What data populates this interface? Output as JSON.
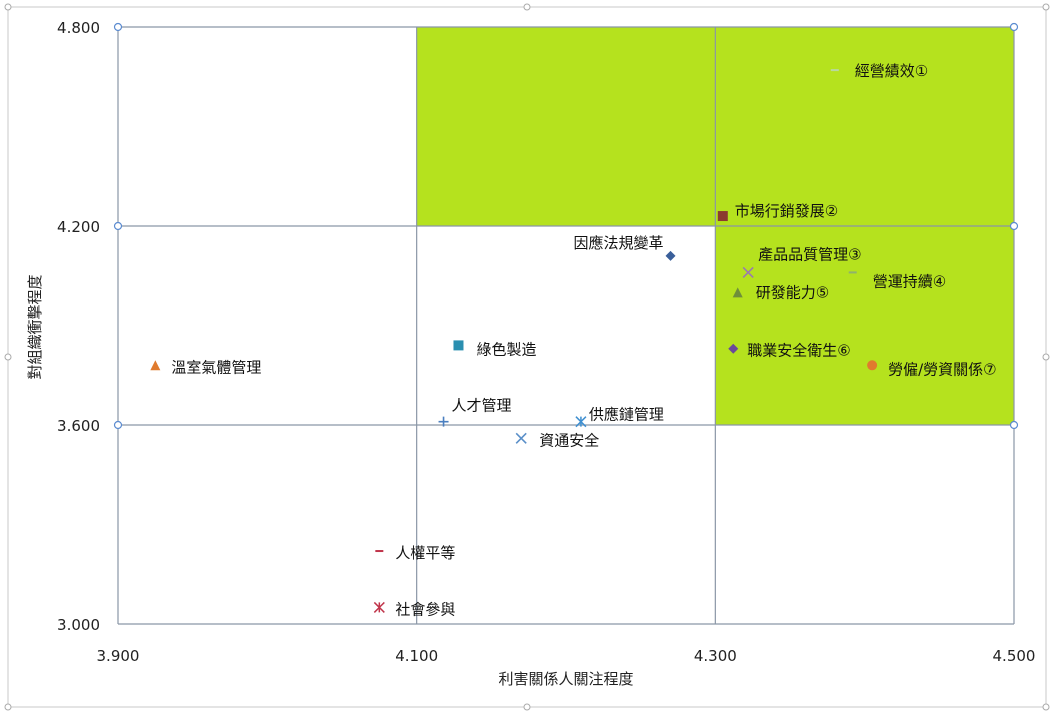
{
  "chart_data": {
    "type": "scatter",
    "title": "",
    "xlabel": "利害關係人關注程度",
    "ylabel": "對組織衝擊程度",
    "xlim": [
      3.9,
      4.5
    ],
    "ylim": [
      3.0,
      4.8
    ],
    "x_ticks": [
      "3.900",
      "4.100",
      "4.300",
      "4.500"
    ],
    "y_ticks": [
      "3.000",
      "3.600",
      "4.200",
      "4.800"
    ],
    "grid": true,
    "legend": "none",
    "highlight_regions": [
      {
        "x": [
          4.1,
          4.3
        ],
        "y": [
          4.2,
          4.8
        ],
        "color": "#b5e21e"
      },
      {
        "x": [
          4.3,
          4.5
        ],
        "y": [
          3.6,
          4.8
        ],
        "color": "#b5e21e"
      }
    ],
    "points": [
      {
        "label": "經營績效①",
        "x": 4.38,
        "y": 4.67,
        "marker": "dash",
        "color": "#b9d9a0"
      },
      {
        "label": "市場行銷發展②",
        "x": 4.305,
        "y": 4.23,
        "marker": "square",
        "color": "#8b3a2f"
      },
      {
        "label": "因應法規變革",
        "x": 4.27,
        "y": 4.11,
        "marker": "diamond",
        "color": "#3a5f9a"
      },
      {
        "label": "產品品質管理③",
        "x": 4.322,
        "y": 4.06,
        "marker": "x",
        "color": "#9a7ab0"
      },
      {
        "label": "營運持續④",
        "x": 4.392,
        "y": 4.06,
        "marker": "dash",
        "color": "#8fb26e"
      },
      {
        "label": "研發能力⑤",
        "x": 4.315,
        "y": 4.0,
        "marker": "triangle",
        "color": "#6f8f3a"
      },
      {
        "label": "職業安全衛生⑥",
        "x": 4.312,
        "y": 3.83,
        "marker": "diamond",
        "color": "#6a4a9a"
      },
      {
        "label": "勞僱/勞資關係⑦",
        "x": 4.405,
        "y": 3.78,
        "marker": "circle",
        "color": "#e07b2e"
      },
      {
        "label": "溫室氣體管理",
        "x": 3.925,
        "y": 3.78,
        "marker": "triangle",
        "color": "#e07b2e"
      },
      {
        "label": "綠色製造",
        "x": 4.128,
        "y": 3.84,
        "marker": "square",
        "color": "#2a8fb0"
      },
      {
        "label": "人才管理",
        "x": 4.118,
        "y": 3.61,
        "marker": "plus",
        "color": "#4a7fc0"
      },
      {
        "label": "供應鏈管理",
        "x": 4.21,
        "y": 3.61,
        "marker": "star",
        "color": "#3f8fd0"
      },
      {
        "label": "資通安全",
        "x": 4.17,
        "y": 3.56,
        "marker": "x",
        "color": "#5a8fc8"
      },
      {
        "label": "人權平等",
        "x": 4.075,
        "y": 3.22,
        "marker": "dash",
        "color": "#c0344a"
      },
      {
        "label": "社會參與",
        "x": 4.075,
        "y": 3.05,
        "marker": "star",
        "color": "#c0344a"
      }
    ]
  }
}
